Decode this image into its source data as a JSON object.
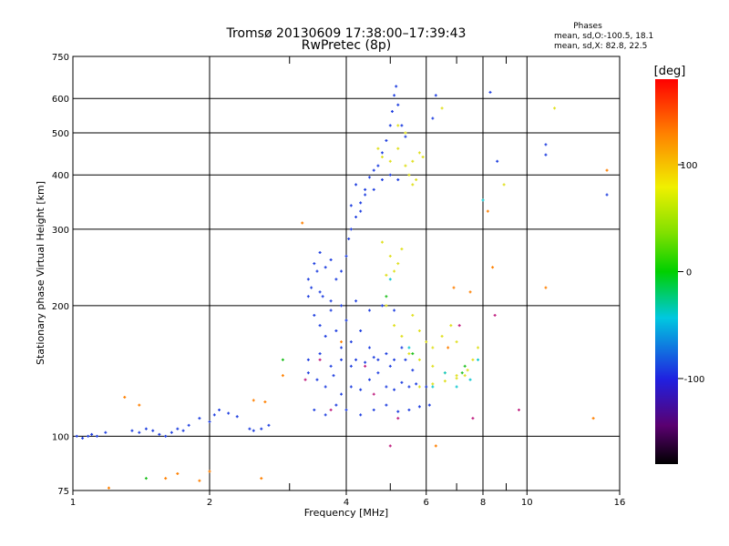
{
  "chart_data": {
    "type": "scatter",
    "title": "Tromsø 20130609 17:38:00–17:39:43",
    "subtitle": "RwPretec (8p)",
    "xlabel": "Frequency [MHz]",
    "ylabel": "Stationary phase Virtual Height [km]",
    "x_scale": "log",
    "y_scale": "log",
    "xlim": [
      1,
      16
    ],
    "ylim": [
      75,
      750
    ],
    "grid": true,
    "x_ticks": [
      1,
      2,
      4,
      6,
      8,
      10,
      16
    ],
    "x_tick_labels": [
      "1",
      "2",
      "4",
      "6",
      "8",
      "10",
      "16"
    ],
    "x_minor_ticks": [
      3,
      5,
      7,
      9
    ],
    "y_ticks": [
      75,
      100,
      200,
      300,
      400,
      500,
      600,
      750
    ],
    "y_tick_labels": [
      "75",
      "100",
      "200",
      "300",
      "400",
      "500",
      "600",
      "750"
    ],
    "stats": {
      "heading": "Phases",
      "line1": "mean, sd,O:-100.5, 18.1",
      "line2": "mean, sd,X:  82.8, 22.5"
    },
    "colorbar": {
      "label": "[deg]",
      "min": -180,
      "max": 180,
      "ticks": [
        100,
        0,
        -100
      ],
      "tick_labels": [
        "100",
        "0",
        "-100"
      ],
      "colormap": "rainbow (black-purple-blue-cyan-green-yellow-orange-red)"
    },
    "series": [
      {
        "color": "#2040e0",
        "phase": -100,
        "points": [
          [
            1.02,
            100
          ],
          [
            1.05,
            99
          ],
          [
            1.08,
            100
          ],
          [
            1.1,
            101
          ],
          [
            1.13,
            100
          ],
          [
            1.18,
            102
          ],
          [
            1.35,
            103
          ],
          [
            1.4,
            102
          ],
          [
            1.45,
            104
          ],
          [
            1.5,
            103
          ],
          [
            1.55,
            101
          ],
          [
            1.6,
            100
          ],
          [
            1.65,
            102
          ],
          [
            1.7,
            104
          ],
          [
            1.75,
            103
          ],
          [
            1.8,
            106
          ],
          [
            1.9,
            110
          ],
          [
            2.0,
            108
          ],
          [
            2.05,
            112
          ],
          [
            2.1,
            115
          ],
          [
            2.2,
            113
          ],
          [
            2.3,
            111
          ],
          [
            2.45,
            104
          ],
          [
            2.5,
            103
          ],
          [
            2.6,
            104
          ],
          [
            2.7,
            106
          ],
          [
            3.3,
            230
          ],
          [
            3.35,
            220
          ],
          [
            3.4,
            250
          ],
          [
            3.45,
            240
          ],
          [
            3.5,
            265
          ],
          [
            3.55,
            210
          ],
          [
            3.6,
            245
          ],
          [
            3.7,
            255
          ],
          [
            3.8,
            230
          ],
          [
            3.9,
            240
          ],
          [
            4.0,
            260
          ],
          [
            4.05,
            285
          ],
          [
            4.1,
            300
          ],
          [
            4.2,
            320
          ],
          [
            4.3,
            345
          ],
          [
            4.4,
            370
          ],
          [
            4.5,
            395
          ],
          [
            4.6,
            410
          ],
          [
            4.7,
            420
          ],
          [
            4.8,
            450
          ],
          [
            4.9,
            480
          ],
          [
            5.0,
            520
          ],
          [
            5.05,
            560
          ],
          [
            5.1,
            610
          ],
          [
            5.15,
            640
          ],
          [
            5.2,
            580
          ],
          [
            5.3,
            520
          ],
          [
            5.4,
            490
          ],
          [
            4.2,
            380
          ],
          [
            4.4,
            360
          ],
          [
            4.6,
            370
          ],
          [
            4.8,
            390
          ],
          [
            5.0,
            400
          ],
          [
            5.2,
            390
          ],
          [
            4.1,
            340
          ],
          [
            4.3,
            330
          ],
          [
            3.4,
            190
          ],
          [
            3.5,
            180
          ],
          [
            3.6,
            170
          ],
          [
            3.7,
            195
          ],
          [
            3.8,
            175
          ],
          [
            3.9,
            160
          ],
          [
            4.0,
            185
          ],
          [
            4.1,
            165
          ],
          [
            4.2,
            150
          ],
          [
            4.3,
            175
          ],
          [
            4.5,
            160
          ],
          [
            4.7,
            150
          ],
          [
            4.9,
            155
          ],
          [
            5.1,
            150
          ],
          [
            5.3,
            160
          ],
          [
            3.3,
            140
          ],
          [
            3.45,
            135
          ],
          [
            3.6,
            130
          ],
          [
            3.75,
            138
          ],
          [
            3.9,
            125
          ],
          [
            4.1,
            130
          ],
          [
            4.3,
            128
          ],
          [
            4.5,
            135
          ],
          [
            4.7,
            140
          ],
          [
            4.9,
            130
          ],
          [
            5.1,
            128
          ],
          [
            5.3,
            133
          ],
          [
            5.5,
            130
          ],
          [
            5.7,
            132
          ],
          [
            6.0,
            130
          ],
          [
            3.4,
            115
          ],
          [
            3.6,
            112
          ],
          [
            3.8,
            118
          ],
          [
            4.0,
            115
          ],
          [
            4.3,
            112
          ],
          [
            4.6,
            115
          ],
          [
            4.9,
            118
          ],
          [
            5.2,
            114
          ],
          [
            5.5,
            115
          ],
          [
            5.8,
            117
          ],
          [
            6.1,
            118
          ],
          [
            3.3,
            150
          ],
          [
            3.5,
            155
          ],
          [
            3.7,
            145
          ],
          [
            3.9,
            150
          ],
          [
            4.1,
            145
          ],
          [
            4.4,
            148
          ],
          [
            4.6,
            152
          ],
          [
            5.0,
            145
          ],
          [
            5.4,
            150
          ],
          [
            5.6,
            142
          ],
          [
            3.3,
            210
          ],
          [
            3.5,
            215
          ],
          [
            3.7,
            205
          ],
          [
            3.9,
            200
          ],
          [
            4.2,
            205
          ],
          [
            4.5,
            195
          ],
          [
            4.8,
            200
          ],
          [
            5.1,
            195
          ],
          [
            6.3,
            610
          ],
          [
            8.3,
            620
          ],
          [
            8.6,
            430
          ],
          [
            11,
            470
          ],
          [
            11,
            445
          ],
          [
            15,
            360
          ],
          [
            6.2,
            540
          ]
        ]
      },
      {
        "color": "#e0e020",
        "phase": 100,
        "points": [
          [
            4.8,
            440
          ],
          [
            5.0,
            430
          ],
          [
            5.2,
            460
          ],
          [
            5.4,
            420
          ],
          [
            5.6,
            430
          ],
          [
            5.8,
            450
          ],
          [
            5.9,
            440
          ],
          [
            5.5,
            400
          ],
          [
            5.7,
            390
          ],
          [
            5.6,
            380
          ],
          [
            4.8,
            280
          ],
          [
            5.0,
            260
          ],
          [
            5.2,
            250
          ],
          [
            5.1,
            240
          ],
          [
            5.3,
            270
          ],
          [
            4.9,
            235
          ],
          [
            4.9,
            200
          ],
          [
            5.1,
            180
          ],
          [
            5.3,
            170
          ],
          [
            5.6,
            190
          ],
          [
            5.8,
            175
          ],
          [
            6.0,
            165
          ],
          [
            6.2,
            160
          ],
          [
            6.5,
            170
          ],
          [
            6.8,
            180
          ],
          [
            7.0,
            165
          ],
          [
            5.5,
            155
          ],
          [
            5.8,
            150
          ],
          [
            6.2,
            145
          ],
          [
            6.6,
            140
          ],
          [
            7.0,
            138
          ],
          [
            7.4,
            142
          ],
          [
            7.6,
            150
          ],
          [
            7.8,
            160
          ],
          [
            5.8,
            130
          ],
          [
            6.2,
            132
          ],
          [
            6.6,
            134
          ],
          [
            7.0,
            136
          ],
          [
            7.3,
            138
          ],
          [
            5.2,
            520
          ],
          [
            5.4,
            500
          ],
          [
            4.7,
            460
          ],
          [
            6.5,
            570
          ],
          [
            8.9,
            380
          ],
          [
            11.5,
            570
          ]
        ]
      },
      {
        "color": "#10c8d0",
        "phase": -20,
        "points": [
          [
            7.5,
            135
          ],
          [
            7.8,
            150
          ],
          [
            6.2,
            130
          ],
          [
            5.0,
            230
          ],
          [
            5.5,
            160
          ],
          [
            8.0,
            350
          ],
          [
            7.0,
            130
          ],
          [
            6.6,
            140
          ]
        ]
      },
      {
        "color": "#20c020",
        "phase": 20,
        "points": [
          [
            1.45,
            80
          ],
          [
            2.9,
            150
          ],
          [
            5.6,
            155
          ],
          [
            7.2,
            140
          ],
          [
            7.3,
            145
          ],
          [
            4.9,
            210
          ]
        ]
      },
      {
        "color": "#ff8000",
        "phase": 130,
        "points": [
          [
            1.3,
            123
          ],
          [
            1.4,
            118
          ],
          [
            1.6,
            80
          ],
          [
            1.7,
            82
          ],
          [
            1.9,
            79
          ],
          [
            2.0,
            83
          ],
          [
            2.5,
            121
          ],
          [
            2.65,
            120
          ],
          [
            2.9,
            138
          ],
          [
            3.2,
            310
          ],
          [
            3.9,
            165
          ],
          [
            6.3,
            95
          ],
          [
            6.7,
            160
          ],
          [
            6.9,
            220
          ],
          [
            7.5,
            215
          ],
          [
            8.2,
            330
          ],
          [
            8.4,
            245
          ],
          [
            11,
            220
          ],
          [
            14,
            110
          ],
          [
            15,
            410
          ],
          [
            2.6,
            80
          ],
          [
            1.2,
            76
          ]
        ]
      },
      {
        "color": "#c02080",
        "phase": -160,
        "points": [
          [
            3.5,
            150
          ],
          [
            3.7,
            115
          ],
          [
            4.6,
            125
          ],
          [
            5.0,
            95
          ],
          [
            5.2,
            110
          ],
          [
            7.1,
            180
          ],
          [
            7.6,
            110
          ],
          [
            8.5,
            190
          ],
          [
            9.6,
            115
          ],
          [
            3.25,
            135
          ],
          [
            4.4,
            145
          ]
        ]
      }
    ]
  }
}
